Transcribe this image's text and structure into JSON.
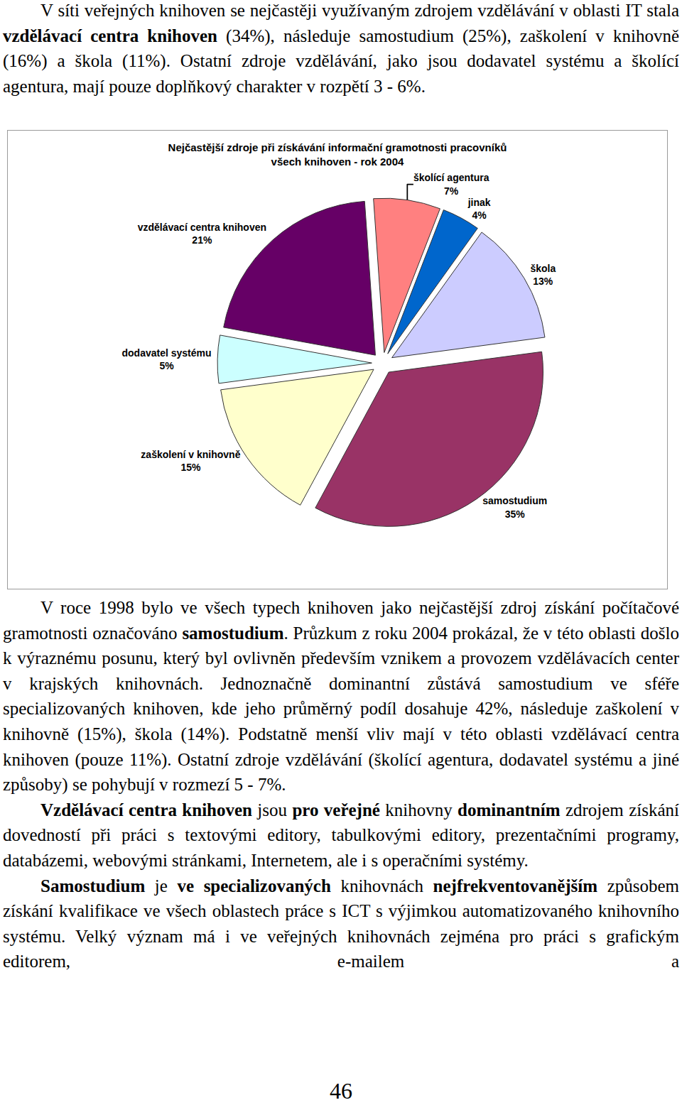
{
  "document": {
    "paragraphs_before": [
      [
        {
          "text": "V síti veřejných knihoven se nejčastěji využívaným zdrojem vzdělávání v oblasti IT stala ",
          "bold": false
        },
        {
          "text": "vzdělávací centra knihoven",
          "bold": true
        },
        {
          "text": " (34%), následuje samostudium (25%), zaškolení v knihovně (16%) a škola (11%). Ostatní zdroje vzdělávání, jako jsou dodavatel systému a školící agentura, mají pouze doplňkový charakter v rozpětí 3 - 6%.",
          "bold": false
        }
      ]
    ],
    "paragraphs_after": [
      [
        {
          "text": "V roce 1998 bylo ve všech typech knihoven jako nejčastější zdroj získání počítačové gramotnosti označováno ",
          "bold": false
        },
        {
          "text": "samostudium",
          "bold": true
        },
        {
          "text": ". Průzkum z roku 2004 prokázal, že v této oblasti došlo k výraznému posunu, který byl ovlivněn především vznikem a provozem vzdělávacích center v krajských knihovnách. Jednoznačně dominantní zůstává samostudium ve sféře specializovaných knihoven, kde jeho průměrný podíl dosahuje 42%, následuje zaškolení v knihovně (15%), škola (14%). Podstatně menší vliv mají v této oblasti vzdělávací centra knihoven (pouze 11%). Ostatní zdroje vzdělávání (školící agentura, dodavatel systému a jiné způsoby) se pohybují v rozmezí 5 - 7%.",
          "bold": false
        }
      ],
      [
        {
          "text": "Vzdělávací centra knihoven",
          "bold": true
        },
        {
          "text": " jsou ",
          "bold": false
        },
        {
          "text": "pro veřejné",
          "bold": true
        },
        {
          "text": " knihovny ",
          "bold": false
        },
        {
          "text": "dominantním",
          "bold": true
        },
        {
          "text": " zdrojem získání dovedností při práci s textovými editory, tabulkovými editory, prezentačními programy, databázemi, webovými stránkami, Internetem, ale i s operačními systémy.",
          "bold": false
        }
      ],
      [
        {
          "text": "Samostudium",
          "bold": true
        },
        {
          "text": " je ",
          "bold": false
        },
        {
          "text": "ve specializovaných",
          "bold": true
        },
        {
          "text": " knihovnách ",
          "bold": false
        },
        {
          "text": "nejfrekventovanějším",
          "bold": true
        },
        {
          "text": " způsobem získání kvalifikace ve všech oblastech práce s ICT s výjimkou automatizovaného knihovního systému. Velký význam má i ve veřejných knihovnách zejména pro práci s grafickým editorem, e-mailem a",
          "bold": false
        }
      ]
    ],
    "page_number": 46
  },
  "chart_data": {
    "type": "pie",
    "title": [
      "Nejčastější zdroje při získávání informační gramotnosti pracovníků",
      "všech knihoven - rok 2004"
    ],
    "categories": [
      "školící agentura",
      "jinak",
      "škola",
      "samostudium",
      "zaškolení v knihovně",
      "dodavatel systému",
      "vzdělávací centra knihoven"
    ],
    "values": [
      7,
      4,
      13,
      35,
      15,
      5,
      21
    ],
    "value_labels": [
      "7%",
      "4%",
      "13%",
      "35%",
      "15%",
      "5%",
      "21%"
    ],
    "colors": [
      "#ff8080",
      "#0066cc",
      "#ccccff",
      "#993366",
      "#ffffcc",
      "#ccffff",
      "#660066"
    ],
    "data_labels": true
  }
}
